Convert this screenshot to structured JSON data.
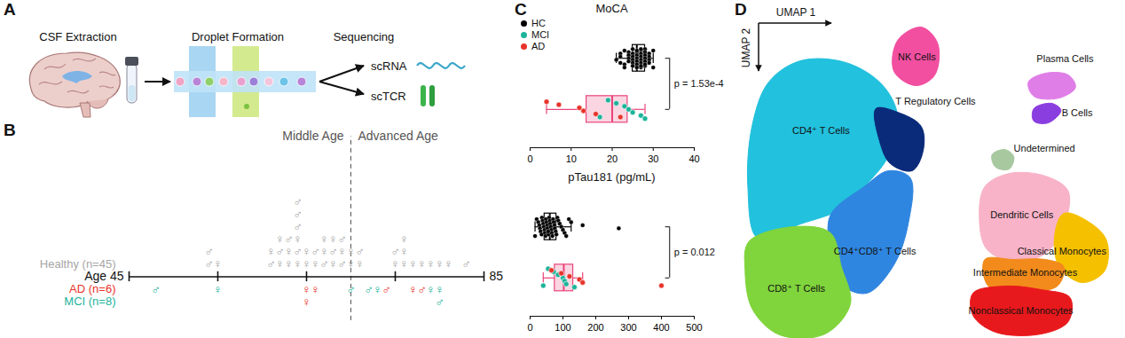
{
  "panel_labels": [
    "A",
    "B",
    "C",
    "D"
  ],
  "diagram": {
    "steps": [
      "CSF Extraction",
      "Droplet Formation",
      "Sequencing"
    ],
    "outputs": [
      "scRNA",
      "scTCR"
    ]
  },
  "chart_data": [
    {
      "type": "timeline",
      "xlim": [
        45,
        85
      ],
      "xticks": [
        {
          "value": 45,
          "label": "Age 45"
        },
        {
          "value": 55,
          "label": null
        },
        {
          "value": 65,
          "label": null
        },
        {
          "value": 75,
          "label": null
        },
        85
      ],
      "annotations": [
        "Middle Age",
        "Advanced Age"
      ],
      "divider": 70,
      "series": [
        {
          "name": "Healthy (n=45)",
          "color": "#a6a6a6",
          "values": [
            54,
            54,
            55,
            61,
            61,
            62,
            62,
            62,
            63,
            63,
            63,
            64,
            64,
            64,
            64,
            64,
            64,
            65,
            65,
            66,
            66,
            67,
            67,
            67,
            68,
            68,
            68,
            69,
            69,
            69,
            70,
            70,
            71,
            71,
            75,
            75,
            76,
            76,
            76,
            77,
            78,
            79,
            80,
            81,
            83
          ],
          "sex": [
            "♂",
            "♂",
            "♀",
            "♂",
            "♀",
            "♀",
            "♂",
            "♀",
            "♀",
            "♀",
            "♂",
            "♀",
            "♂",
            "♀",
            "♂",
            "♂",
            "♂",
            "♀",
            "♀",
            "♀",
            "♂",
            "♂",
            "♀",
            "♀",
            "♀",
            "♂",
            "♀",
            "♂",
            "♀",
            "♂",
            "♀",
            "♀",
            "♀",
            "♂",
            "♀",
            "♂",
            "♀",
            "♀",
            "♀",
            "♀",
            "♀",
            "♀",
            "♀",
            "♀",
            "♂"
          ]
        },
        {
          "name": "AD (n=6)",
          "color": "#e8332a",
          "values": [
            65,
            65,
            66,
            74,
            77,
            78
          ],
          "sex": [
            "♀",
            "♀",
            "♀",
            "♂",
            "♀",
            "♂"
          ]
        },
        {
          "name": "MCI (n=8)",
          "color": "#1bb39a",
          "values": [
            48,
            55,
            70,
            72,
            73,
            79,
            80,
            80
          ],
          "sex": [
            "♂",
            "♀",
            "♂",
            "♂",
            "♀",
            "♀",
            "♀",
            "♂"
          ]
        }
      ]
    },
    {
      "type": "box",
      "title": "MoCA",
      "xlim": [
        0,
        40
      ],
      "xticks": [
        0,
        10,
        20,
        30,
        40
      ],
      "color": "#e8457a",
      "legend": "top-left",
      "annotations": [
        "p = 1.53e-4"
      ],
      "series": [
        {
          "name": "HC",
          "color": "#000000",
          "values": [
            30,
            30,
            29,
            29,
            29,
            29,
            28,
            28,
            28,
            28,
            28,
            28,
            28,
            27,
            27,
            27,
            27,
            27,
            27,
            27,
            27,
            26,
            26,
            26,
            26,
            26,
            26,
            26,
            25,
            25,
            25,
            25,
            25,
            25,
            24,
            24,
            24,
            24,
            23,
            23,
            23,
            22,
            22,
            21,
            22
          ]
        },
        {
          "name": "MCI",
          "color": "#1bb39a",
          "values": [
            17,
            19,
            21,
            23,
            24,
            25,
            27,
            28
          ]
        },
        {
          "name": "AD",
          "color": "#e8332a",
          "values": [
            4,
            7,
            12,
            13,
            16,
            22
          ]
        }
      ]
    },
    {
      "type": "box",
      "title": "pTau181 (pg/mL)",
      "xlim": [
        0,
        500
      ],
      "xticks": [
        0,
        100,
        200,
        300,
        400,
        500
      ],
      "color": "#e8457a",
      "annotations": [
        "p = 0.012"
      ],
      "series": [
        {
          "name": "HC",
          "color": "#000000",
          "values": [
            15,
            20,
            25,
            28,
            30,
            32,
            35,
            36,
            38,
            40,
            42,
            44,
            45,
            47,
            48,
            50,
            52,
            53,
            55,
            56,
            58,
            60,
            61,
            63,
            65,
            66,
            68,
            70,
            72,
            74,
            75,
            78,
            80,
            83,
            86,
            90,
            95,
            100,
            105,
            110,
            118,
            125,
            160,
            270,
            55
          ]
        },
        {
          "name": "MCI",
          "color": "#1bb39a",
          "values": [
            40,
            55,
            72,
            85,
            100,
            105,
            110,
            135
          ]
        },
        {
          "name": "AD",
          "color": "#e8332a",
          "values": [
            65,
            95,
            120,
            150,
            160,
            400
          ]
        }
      ]
    },
    {
      "type": "umap",
      "xlabel": "UMAP 1",
      "ylabel": "UMAP 2",
      "tick_labels": false,
      "xlim": [
        40,
        473
      ],
      "ylim": [
        0,
        381
      ],
      "clusters": [
        {
          "name": "CD4⁺ T Cells",
          "color": "#22c1dd",
          "outline": [
            [
              80,
              92
            ],
            [
              115,
              68
            ],
            [
              165,
              70
            ],
            [
              205,
              95
            ],
            [
              222,
              130
            ],
            [
              212,
              175
            ],
            [
              190,
              205
            ],
            [
              160,
              235
            ],
            [
              115,
              252
            ],
            [
              68,
              268
            ],
            [
              57,
              210
            ],
            [
              62,
              140
            ]
          ]
        },
        {
          "name": "T Regulatory Cells",
          "color": "#0a2a7a",
          "outline": [
            [
              198,
              122
            ],
            [
              222,
              126
            ],
            [
              248,
              142
            ],
            [
              250,
              170
            ],
            [
              238,
              192
            ],
            [
              214,
              184
            ],
            [
              202,
              158
            ]
          ]
        },
        {
          "name": "CD4⁺CD8⁺ T Cells",
          "color": "#2f86e0",
          "outline": [
            [
              148,
              242
            ],
            [
              185,
              210
            ],
            [
              212,
              192
            ],
            [
              236,
              200
            ],
            [
              234,
              250
            ],
            [
              218,
              298
            ],
            [
              188,
              330
            ],
            [
              160,
              320
            ],
            [
              148,
              282
            ]
          ]
        },
        {
          "name": "CD8⁺ T Cells",
          "color": "#80d43c",
          "outline": [
            [
              58,
              272
            ],
            [
              108,
              255
            ],
            [
              148,
              262
            ],
            [
              160,
              300
            ],
            [
              170,
              342
            ],
            [
              142,
              376
            ],
            [
              92,
              377
            ],
            [
              62,
              348
            ],
            [
              54,
              305
            ]
          ]
        },
        {
          "name": "NK Cells",
          "color": "#f24fa0",
          "outline": [
            [
              222,
              45
            ],
            [
              248,
              30
            ],
            [
              266,
              48
            ],
            [
              263,
              84
            ],
            [
              242,
              96
            ],
            [
              218,
              80
            ]
          ]
        },
        {
          "name": "Plasma Cells",
          "color": "#e07ee8",
          "outline": [
            [
              366,
              92
            ],
            [
              385,
              82
            ],
            [
              410,
              84
            ],
            [
              418,
              98
            ],
            [
              400,
              110
            ],
            [
              372,
              108
            ]
          ]
        },
        {
          "name": "B Cells",
          "color": "#8a3ee0",
          "outline": [
            [
              372,
              122
            ],
            [
              392,
              116
            ],
            [
              402,
              124
            ],
            [
              388,
              138
            ],
            [
              372,
              136
            ]
          ]
        },
        {
          "name": "Undetermined",
          "color": "#a8c8a0",
          "outline": [
            [
              326,
              174
            ],
            [
              340,
              168
            ],
            [
              350,
              176
            ],
            [
              345,
              190
            ],
            [
              330,
              188
            ]
          ]
        },
        {
          "name": "Dendritic Cells",
          "color": "#f8b3c8",
          "outline": [
            [
              318,
              210
            ],
            [
              345,
              195
            ],
            [
              385,
              198
            ],
            [
              410,
              215
            ],
            [
              405,
              255
            ],
            [
              385,
              285
            ],
            [
              350,
              295
            ],
            [
              320,
              280
            ],
            [
              312,
              245
            ]
          ]
        },
        {
          "name": "Classical Monocytes",
          "color": "#f5c000",
          "outline": [
            [
              405,
              240
            ],
            [
              430,
              248
            ],
            [
              452,
              270
            ],
            [
              450,
              305
            ],
            [
              425,
              318
            ],
            [
              400,
              300
            ],
            [
              395,
              265
            ]
          ]
        },
        {
          "name": "Intermediate Monocytes",
          "color": "#f28b1b",
          "outline": [
            [
              318,
              292
            ],
            [
              350,
              292
            ],
            [
              385,
              292
            ],
            [
              405,
              300
            ],
            [
              398,
              322
            ],
            [
              360,
              328
            ],
            [
              322,
              322
            ]
          ]
        },
        {
          "name": "Nonclassical Monocytes",
          "color": "#e8191c",
          "outline": [
            [
              305,
              330
            ],
            [
              340,
              322
            ],
            [
              380,
              326
            ],
            [
              412,
              335
            ],
            [
              410,
              362
            ],
            [
              380,
              376
            ],
            [
              330,
              374
            ],
            [
              305,
              355
            ]
          ]
        }
      ]
    }
  ]
}
